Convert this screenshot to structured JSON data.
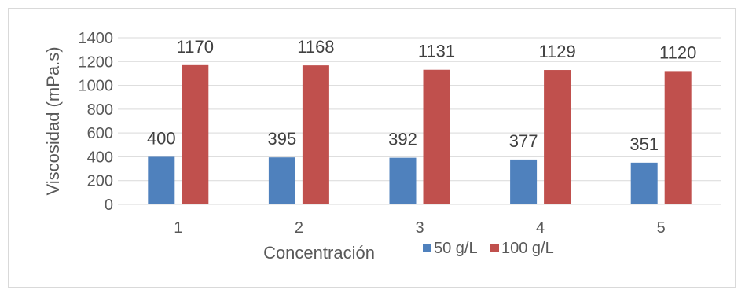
{
  "chart_data": {
    "type": "bar",
    "title": "",
    "xlabel": "Concentración",
    "ylabel": "Viscosidad (mPa.s)",
    "categories": [
      "1",
      "2",
      "3",
      "4",
      "5"
    ],
    "ylim": [
      0,
      1400
    ],
    "yticks": [
      0,
      200,
      400,
      600,
      800,
      1000,
      1200,
      1400
    ],
    "grid": true,
    "legend": "bottom",
    "series": [
      {
        "name": "50 g/L",
        "color": "#4f81bd",
        "values": [
          400,
          395,
          392,
          377,
          351
        ]
      },
      {
        "name": "100 g/L",
        "color": "#c0504d",
        "values": [
          1170,
          1168,
          1131,
          1129,
          1120
        ]
      }
    ]
  }
}
